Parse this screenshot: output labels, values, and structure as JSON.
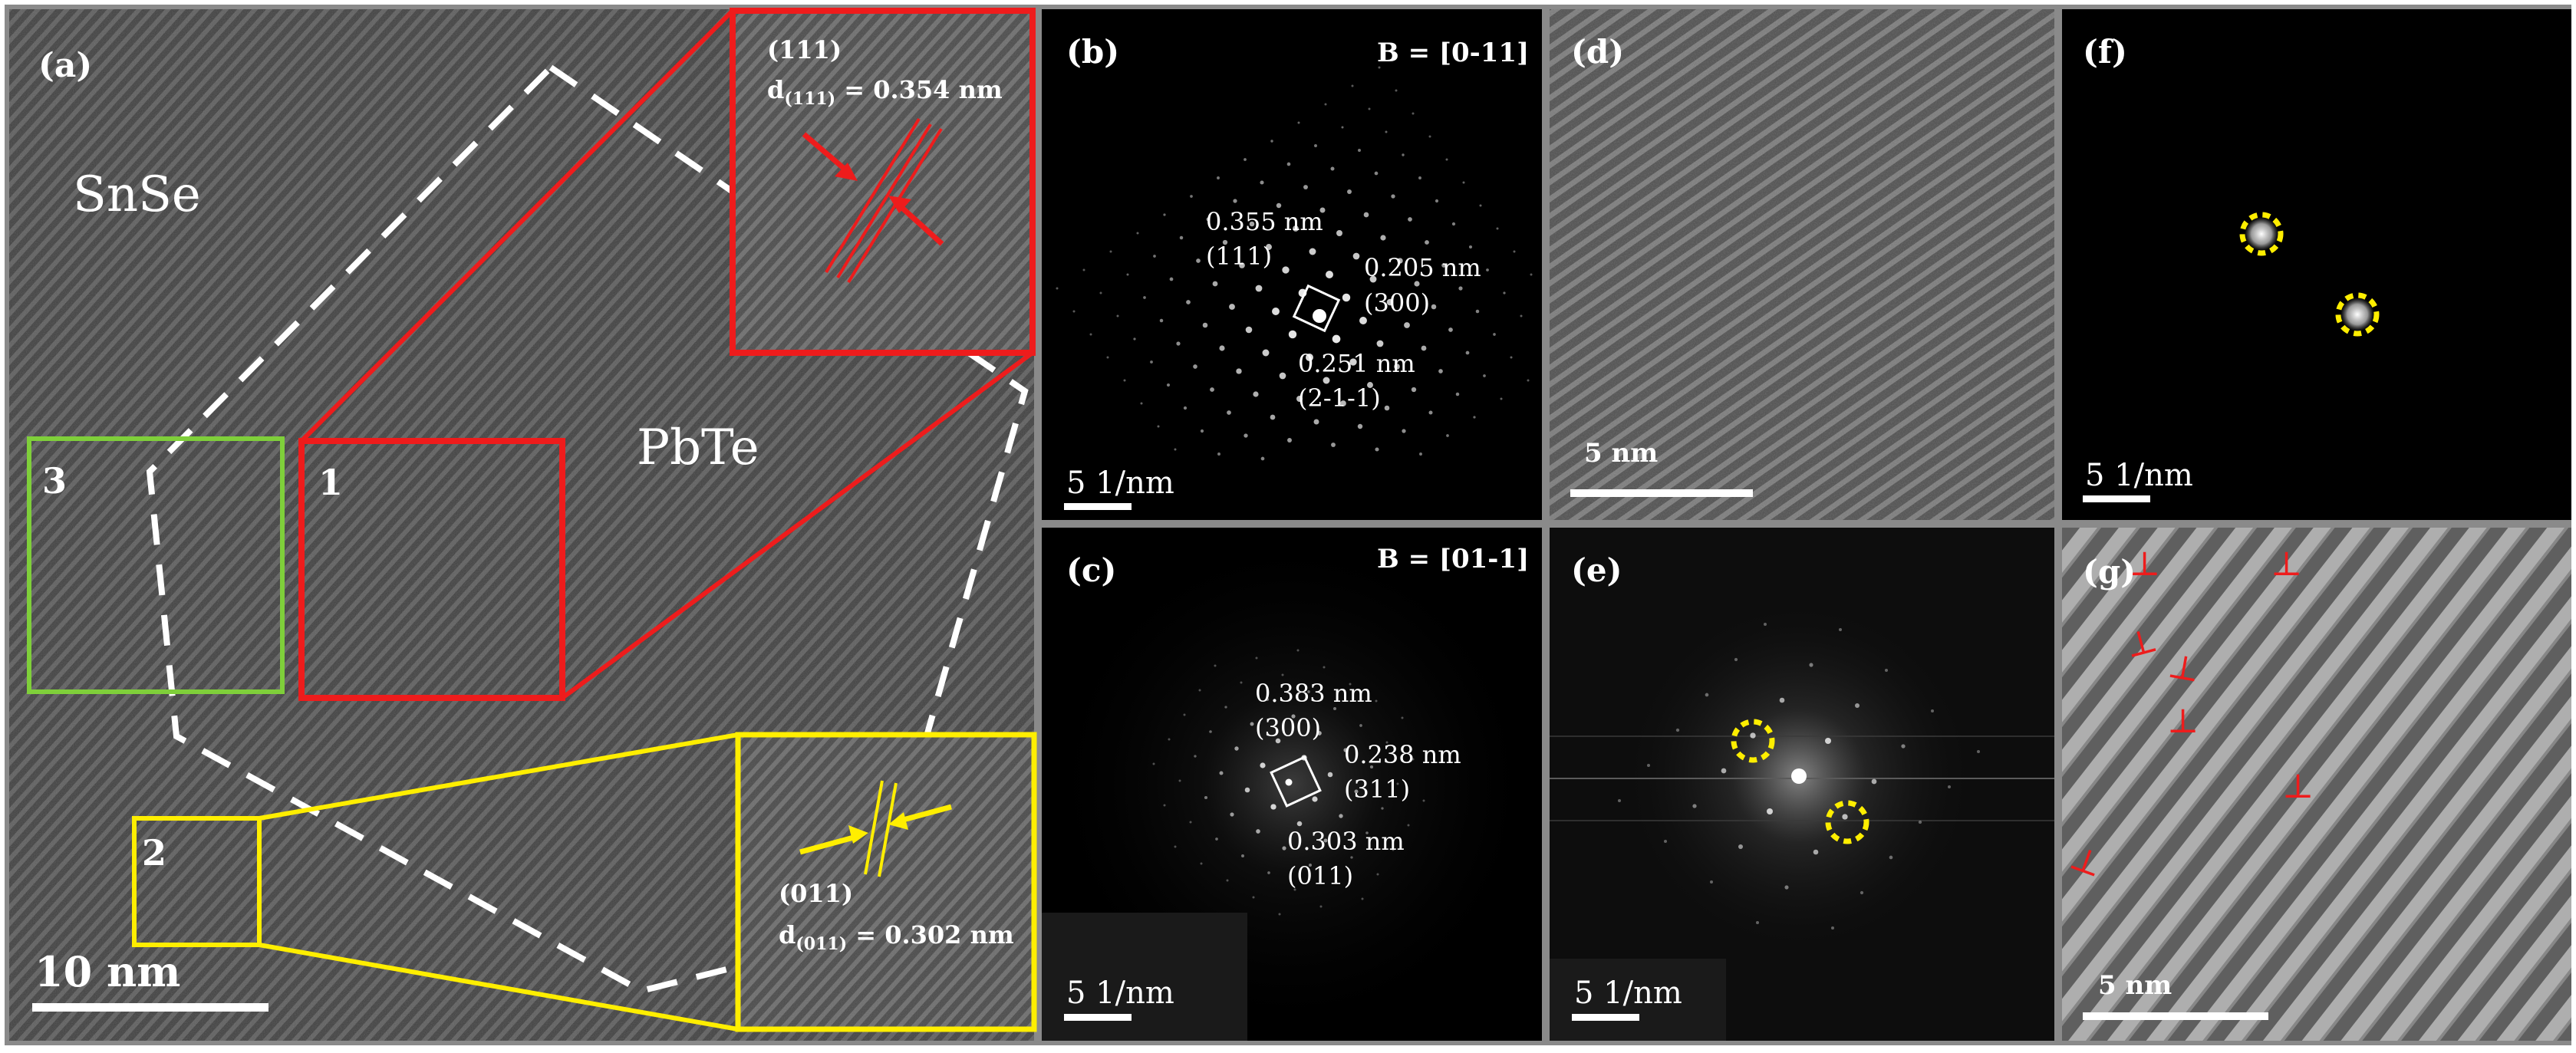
{
  "panels": {
    "a": {
      "label": "(a)",
      "phase_snse": "SnSe",
      "phase_pbte": "PbTe",
      "region_1": "1",
      "region_2": "2",
      "region_3": "3",
      "inset_top_plane": "(111)",
      "inset_top_d_prefix": "d",
      "inset_top_d_sub": "(111)",
      "inset_top_d_value": " = 0.354 nm",
      "inset_bottom_plane": "(011)",
      "inset_bottom_d_prefix": "d",
      "inset_bottom_d_sub": "(011)",
      "inset_bottom_d_value": " = 0.302 nm",
      "scale_bar": "10 nm"
    },
    "b": {
      "label": "(b)",
      "zone_axis": "B = [0-11]",
      "spot_1_d": "0.355 nm",
      "spot_1_hkl": "(111)",
      "spot_2_d": "0.205 nm",
      "spot_2_hkl": "(300)",
      "spot_3_d": "0.251 nm",
      "spot_3_hkl": "(2-1-1)",
      "scale_bar": "5  1/nm"
    },
    "c": {
      "label": "(c)",
      "zone_axis": "B = [01-1]",
      "spot_1_d": "0.383 nm",
      "spot_1_hkl": "(300)",
      "spot_2_d": "0.238 nm",
      "spot_2_hkl": "(311)",
      "spot_3_d": "0.303 nm",
      "spot_3_hkl": "(011)",
      "scale_bar": "5  1/nm"
    },
    "d": {
      "label": "(d)",
      "scale_bar": "5 nm"
    },
    "e": {
      "label": "(e)",
      "scale_bar": "5  1/nm"
    },
    "f": {
      "label": "(f)",
      "scale_bar": "5  1/nm"
    },
    "g": {
      "label": "(g)",
      "scale_bar": "5 nm",
      "dislocation_symbol": "⊥"
    }
  },
  "colors": {
    "red": "#ee1c1c",
    "yellow": "#ffee00",
    "green": "#7fcf3a",
    "white": "#ffffff",
    "frame": "#8a8a8a"
  }
}
